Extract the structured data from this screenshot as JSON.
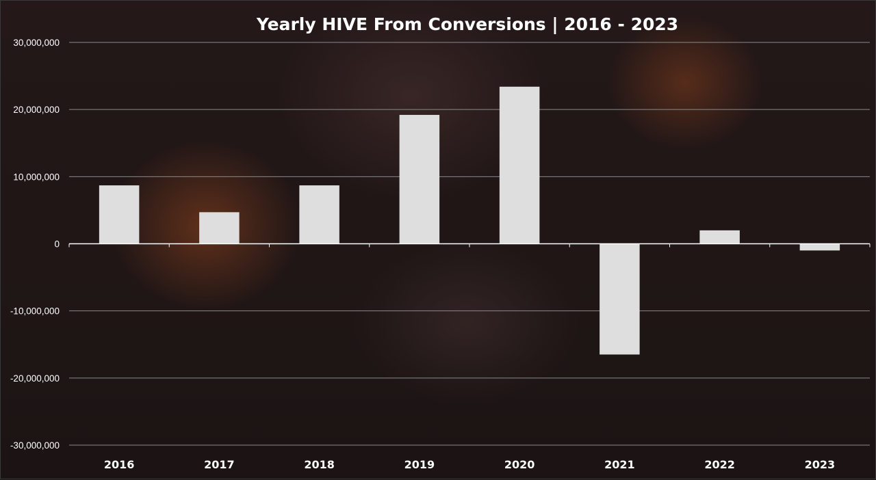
{
  "chart_data": {
    "type": "bar",
    "title": "Yearly HIVE From Conversions | 2016 - 2023",
    "xlabel": "",
    "ylabel": "",
    "categories": [
      "2016",
      "2017",
      "2018",
      "2019",
      "2020",
      "2021",
      "2022",
      "2023"
    ],
    "values": [
      8700000,
      4700000,
      8700000,
      19200000,
      23400000,
      -16500000,
      2000000,
      -1000000
    ],
    "ylim": [
      -30000000,
      30000000
    ],
    "yticks": [
      30000000,
      20000000,
      10000000,
      0,
      -10000000,
      -20000000,
      -30000000
    ],
    "ytick_labels": [
      "30,000,000",
      "20,000,000",
      "10,000,000",
      "0",
      "-10,000,000",
      "-20,000,000",
      "-30,000,000"
    ],
    "grid": true,
    "legend": "none",
    "colors": {
      "bar": "#dedede",
      "grid": "#8a8a8a",
      "text": "#ffffff",
      "zero_line": "#ffffff"
    }
  }
}
